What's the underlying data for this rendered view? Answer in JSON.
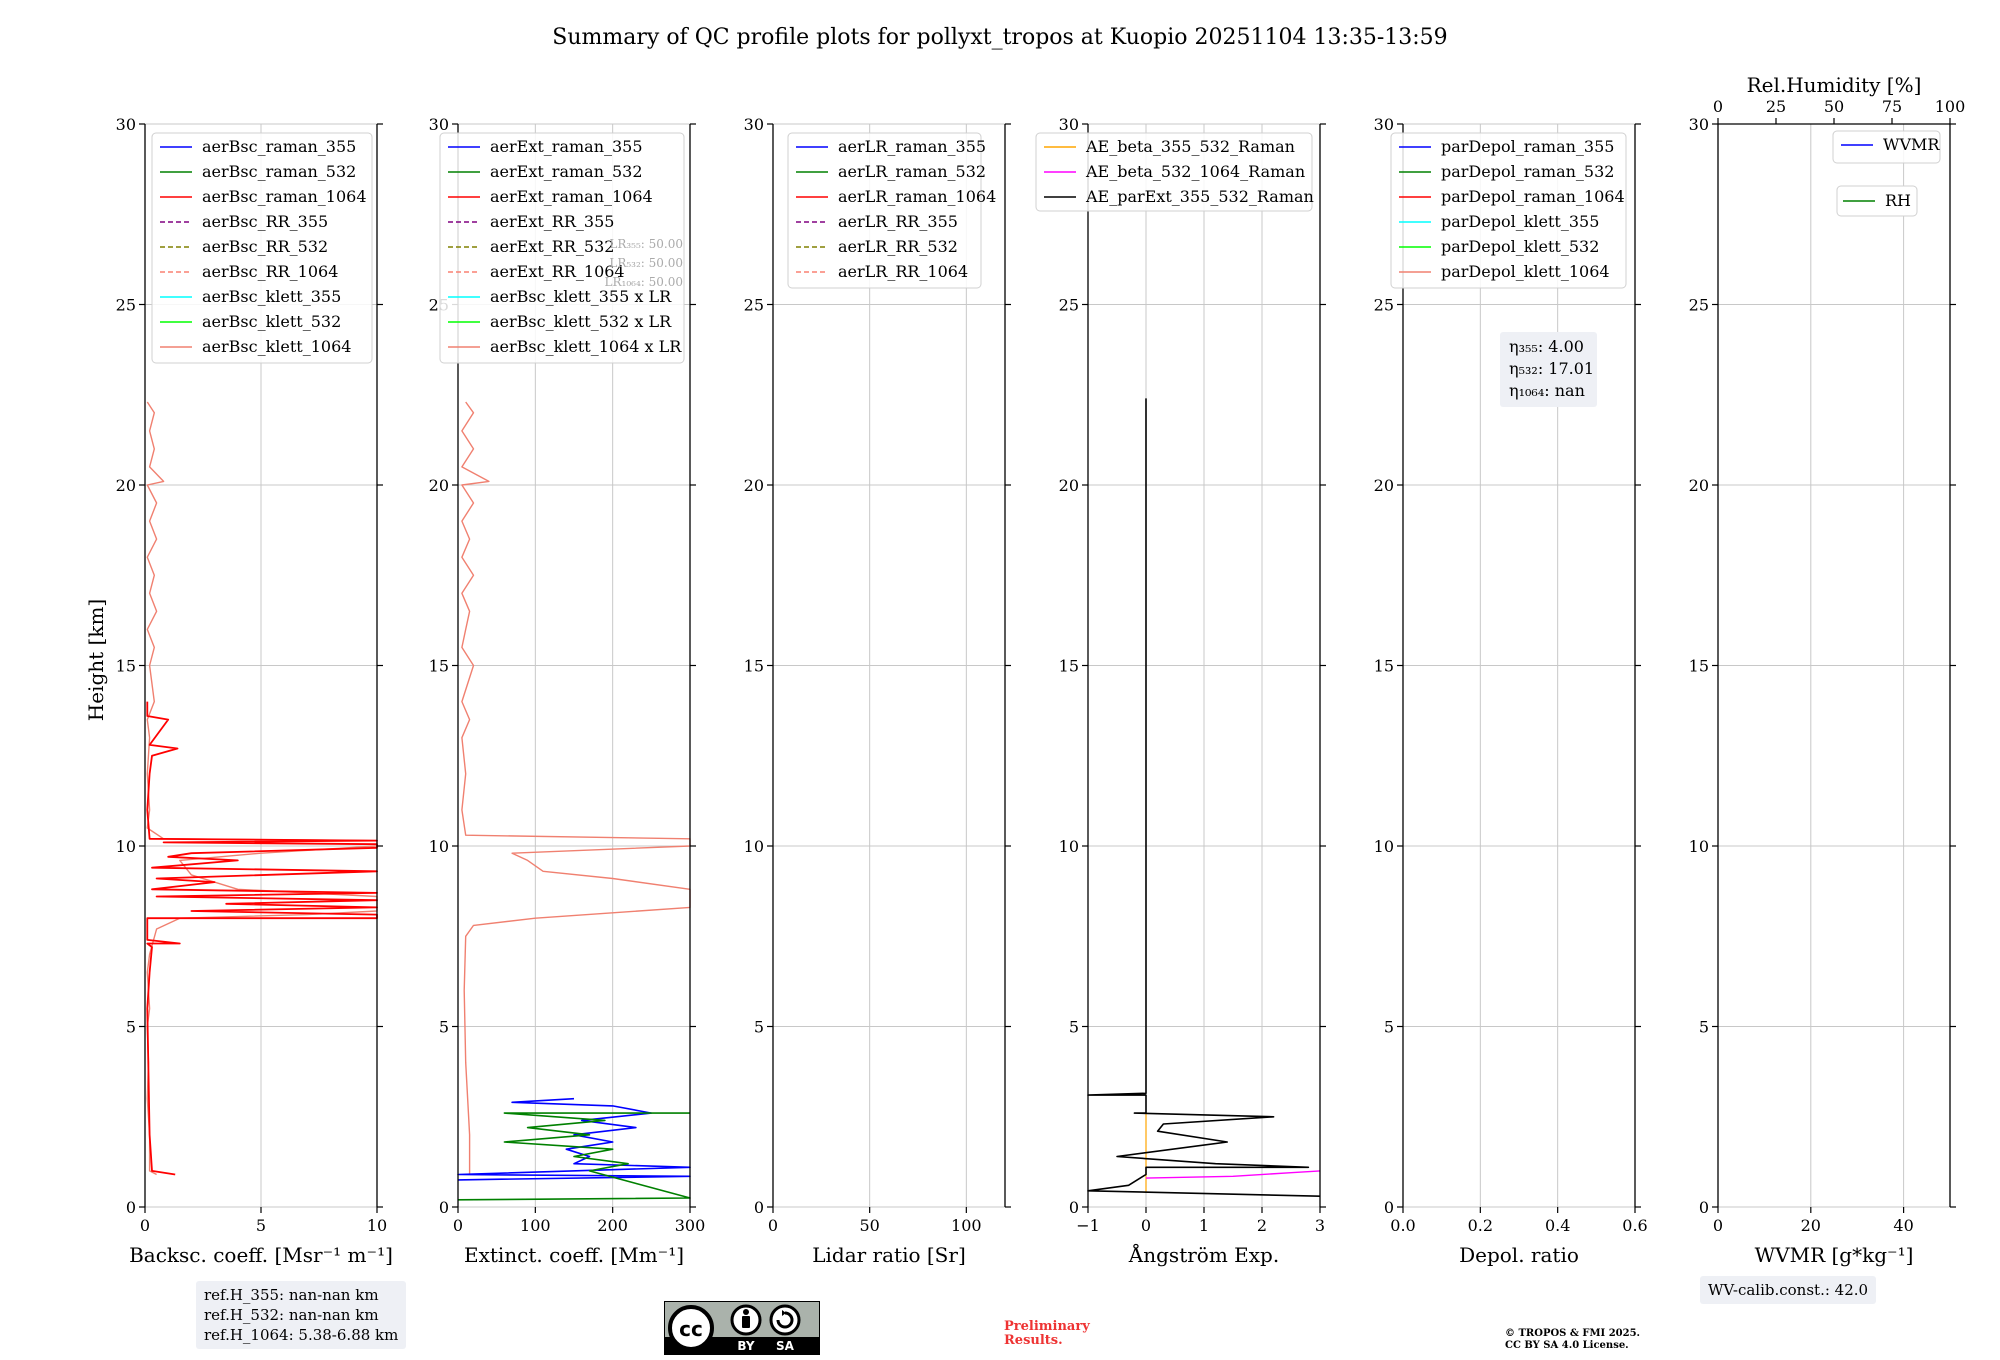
{
  "figure_title": "Summary of QC profile plots for pollyxt_tropos at Kuopio 20251104 13:35-13:59",
  "ref_heights": [
    "ref.H_355: nan-nan km",
    "ref.H_532: nan-nan km",
    "ref.H_1064: 5.38-6.88 km"
  ],
  "wv_calib": "WV-calib.const.: 42.0",
  "preliminary": [
    "Preliminary",
    "Results."
  ],
  "copyright": [
    "© TROPOS & FMI 2025.",
    "CC BY SA 4.0 License."
  ],
  "license_badge": [
    "BY",
    "SA"
  ],
  "chart_data": [
    {
      "type": "line",
      "ylabel": "Height [km]",
      "ylim": [
        0,
        30
      ],
      "yticks": [
        0,
        5,
        10,
        15,
        20,
        25,
        30
      ],
      "xlabel": "Backsc. coeff. [Msr⁻¹ m⁻¹]",
      "xlim": [
        0,
        10
      ],
      "xticks": [
        0,
        5,
        10
      ],
      "legend": [
        {
          "label": "aerBsc_raman_355",
          "color": "#0000ff",
          "dash": false
        },
        {
          "label": "aerBsc_raman_532",
          "color": "#008000",
          "dash": false
        },
        {
          "label": "aerBsc_raman_1064",
          "color": "#ff0000",
          "dash": false
        },
        {
          "label": "aerBsc_RR_355",
          "color": "#800080",
          "dash": true
        },
        {
          "label": "aerBsc_RR_532",
          "color": "#808000",
          "dash": true
        },
        {
          "label": "aerBsc_RR_1064",
          "color": "#fa8072",
          "dash": true
        },
        {
          "label": "aerBsc_klett_355",
          "color": "#00ffff",
          "dash": false
        },
        {
          "label": "aerBsc_klett_532",
          "color": "#00ff00",
          "dash": false
        },
        {
          "label": "aerBsc_klett_1064",
          "color": "#f08070",
          "dash": false
        }
      ],
      "series": [
        {
          "name": "aerBsc_klett_1064",
          "color": "#f08070",
          "width": 1.4,
          "points": [
            [
              0.5,
              0.9
            ],
            [
              0.2,
              1.0
            ],
            [
              0.2,
              2
            ],
            [
              0.1,
              3
            ],
            [
              0.15,
              4
            ],
            [
              0.1,
              5
            ],
            [
              0.2,
              5.5
            ],
            [
              0.1,
              6.5
            ],
            [
              0.2,
              7
            ],
            [
              0.5,
              7.7
            ],
            [
              1.5,
              8.0
            ],
            [
              7,
              8.1
            ],
            [
              10,
              8.2
            ],
            [
              10,
              8.6
            ],
            [
              4,
              8.8
            ],
            [
              2,
              9.2
            ],
            [
              1.5,
              9.6
            ],
            [
              5,
              9.8
            ],
            [
              10,
              10.0
            ],
            [
              10,
              10.15
            ],
            [
              0.8,
              10.2
            ],
            [
              0.1,
              10.5
            ],
            [
              0.2,
              11
            ],
            [
              0.1,
              12
            ],
            [
              0.2,
              13
            ],
            [
              0.1,
              13.5
            ],
            [
              0.4,
              14
            ],
            [
              0.2,
              15
            ],
            [
              0.4,
              15.5
            ],
            [
              0.1,
              16
            ],
            [
              0.5,
              16.5
            ],
            [
              0.2,
              17
            ],
            [
              0.4,
              17.5
            ],
            [
              0.1,
              18
            ],
            [
              0.5,
              18.5
            ],
            [
              0.2,
              19
            ],
            [
              0.5,
              19.5
            ],
            [
              0.1,
              20
            ],
            [
              0.8,
              20.1
            ],
            [
              0.2,
              20.5
            ],
            [
              0.4,
              21
            ],
            [
              0.2,
              21.5
            ],
            [
              0.4,
              22
            ],
            [
              0.1,
              22.3
            ]
          ]
        },
        {
          "name": "aerBsc_raman_1064",
          "color": "#ff0000",
          "width": 1.8,
          "points": [
            [
              1.3,
              0.9
            ],
            [
              0.3,
              1.0
            ],
            [
              0.2,
              2
            ],
            [
              0.1,
              5.5
            ],
            [
              0.2,
              6.5
            ],
            [
              0.3,
              7.2
            ],
            [
              0.1,
              7.3
            ],
            [
              1.5,
              7.3
            ],
            [
              0.1,
              7.4
            ],
            [
              0.1,
              8.0
            ],
            [
              10,
              8.0
            ],
            [
              10,
              8.1
            ],
            [
              2,
              8.2
            ],
            [
              10,
              8.3
            ],
            [
              3.5,
              8.4
            ],
            [
              10,
              8.5
            ],
            [
              0.5,
              8.6
            ],
            [
              10,
              8.7
            ],
            [
              0.3,
              8.8
            ],
            [
              3,
              9.0
            ],
            [
              0.5,
              9.1
            ],
            [
              10,
              9.3
            ],
            [
              0.3,
              9.4
            ],
            [
              4,
              9.6
            ],
            [
              1,
              9.7
            ],
            [
              2,
              9.8
            ],
            [
              10,
              9.95
            ],
            [
              10,
              10.05
            ],
            [
              0.8,
              10.1
            ],
            [
              10,
              10.15
            ],
            [
              0.2,
              10.2
            ],
            [
              0.1,
              11
            ],
            [
              0.2,
              12
            ],
            [
              0.3,
              12.5
            ],
            [
              1.4,
              12.7
            ],
            [
              0.2,
              12.8
            ],
            [
              1.0,
              13.5
            ],
            [
              0.1,
              13.6
            ],
            [
              0.1,
              14
            ]
          ]
        }
      ]
    },
    {
      "type": "line",
      "ylim": [
        0,
        30
      ],
      "yticks": [
        0,
        5,
        10,
        15,
        20,
        25,
        30
      ],
      "xlabel": "Extinct. coeff. [Mm⁻¹]",
      "xlim": [
        0,
        300
      ],
      "xticks": [
        0,
        100,
        200,
        300
      ],
      "legend": [
        {
          "label": "aerExt_raman_355",
          "color": "#0000ff",
          "dash": false
        },
        {
          "label": "aerExt_raman_532",
          "color": "#008000",
          "dash": false
        },
        {
          "label": "aerExt_raman_1064",
          "color": "#ff0000",
          "dash": false
        },
        {
          "label": "aerExt_RR_355",
          "color": "#800080",
          "dash": true
        },
        {
          "label": "aerExt_RR_532",
          "color": "#808000",
          "dash": true
        },
        {
          "label": "aerExt_RR_1064",
          "color": "#fa8072",
          "dash": true
        },
        {
          "label": "aerBsc_klett_355 x LR",
          "color": "#00ffff",
          "dash": false
        },
        {
          "label": "aerBsc_klett_532 x LR",
          "color": "#00ff00",
          "dash": false
        },
        {
          "label": "aerBsc_klett_1064 x LR",
          "color": "#f08070",
          "dash": false
        }
      ],
      "annotations": [
        "LR₃₅₅: 50.00",
        "LR₅₃₂: 50.00",
        "LR₁₀₆₄: 50.00"
      ],
      "series": [
        {
          "name": "aerBsc_klett_1064 x LR",
          "color": "#f08070",
          "width": 1.4,
          "points": [
            [
              15,
              0.9
            ],
            [
              15,
              2
            ],
            [
              10,
              4
            ],
            [
              8,
              6
            ],
            [
              10,
              7.5
            ],
            [
              20,
              7.8
            ],
            [
              100,
              8.0
            ],
            [
              300,
              8.3
            ],
            [
              300,
              8.8
            ],
            [
              200,
              9.1
            ],
            [
              110,
              9.3
            ],
            [
              90,
              9.6
            ],
            [
              70,
              9.8
            ],
            [
              300,
              10.0
            ],
            [
              300,
              10.2
            ],
            [
              10,
              10.3
            ],
            [
              5,
              11
            ],
            [
              10,
              12
            ],
            [
              5,
              13
            ],
            [
              15,
              13.5
            ],
            [
              5,
              14
            ],
            [
              20,
              15
            ],
            [
              5,
              15.5
            ],
            [
              10,
              16
            ],
            [
              15,
              16.5
            ],
            [
              5,
              17
            ],
            [
              20,
              17.5
            ],
            [
              5,
              18
            ],
            [
              15,
              18.5
            ],
            [
              5,
              19
            ],
            [
              20,
              19.5
            ],
            [
              5,
              20
            ],
            [
              40,
              20.1
            ],
            [
              5,
              20.5
            ],
            [
              20,
              21
            ],
            [
              5,
              21.5
            ],
            [
              20,
              22
            ],
            [
              10,
              22.3
            ]
          ]
        },
        {
          "name": "aerExt_raman_355",
          "color": "#0000ff",
          "width": 1.6,
          "points": [
            [
              0,
              0.75
            ],
            [
              300,
              0.85
            ],
            [
              0,
              0.9
            ],
            [
              300,
              1.1
            ],
            [
              150,
              1.2
            ],
            [
              170,
              1.4
            ],
            [
              140,
              1.6
            ],
            [
              200,
              1.8
            ],
            [
              150,
              2.0
            ],
            [
              230,
              2.2
            ],
            [
              160,
              2.4
            ],
            [
              250,
              2.6
            ],
            [
              200,
              2.8
            ],
            [
              70,
              2.9
            ],
            [
              150,
              3.0
            ]
          ]
        },
        {
          "name": "aerExt_raman_532",
          "color": "#008000",
          "width": 1.6,
          "points": [
            [
              0,
              0.2
            ],
            [
              300,
              0.25
            ],
            [
              170,
              1.0
            ],
            [
              220,
              1.2
            ],
            [
              150,
              1.4
            ],
            [
              200,
              1.6
            ],
            [
              60,
              1.8
            ],
            [
              170,
              2.0
            ],
            [
              90,
              2.2
            ],
            [
              190,
              2.4
            ],
            [
              60,
              2.6
            ],
            [
              300,
              2.6
            ]
          ]
        }
      ]
    },
    {
      "type": "line",
      "ylim": [
        0,
        30
      ],
      "yticks": [
        0,
        5,
        10,
        15,
        20,
        25,
        30
      ],
      "xlabel": "Lidar ratio [Sr]",
      "xlim": [
        0,
        120
      ],
      "xticks": [
        0,
        50,
        100
      ],
      "legend": [
        {
          "label": "aerLR_raman_355",
          "color": "#0000ff",
          "dash": false
        },
        {
          "label": "aerLR_raman_532",
          "color": "#008000",
          "dash": false
        },
        {
          "label": "aerLR_raman_1064",
          "color": "#ff0000",
          "dash": false
        },
        {
          "label": "aerLR_RR_355",
          "color": "#800080",
          "dash": true
        },
        {
          "label": "aerLR_RR_532",
          "color": "#808000",
          "dash": true
        },
        {
          "label": "aerLR_RR_1064",
          "color": "#fa8072",
          "dash": true
        }
      ],
      "series": []
    },
    {
      "type": "line",
      "ylim": [
        0,
        30
      ],
      "yticks": [
        0,
        5,
        10,
        15,
        20,
        25,
        30
      ],
      "xlabel": "Ångström Exp.",
      "xlim": [
        -1,
        3
      ],
      "xticks": [
        -1,
        0,
        1,
        2,
        3
      ],
      "legend": [
        {
          "label": "AE_beta_355_532_Raman",
          "color": "#ffa500",
          "dash": false
        },
        {
          "label": "AE_beta_532_1064_Raman",
          "color": "#ff00ff",
          "dash": false
        },
        {
          "label": "AE_parExt_355_532_Raman",
          "color": "#000000",
          "dash": false
        }
      ],
      "series": [
        {
          "name": "AE_beta_355_532_Raman",
          "color": "#ffa500",
          "width": 1.2,
          "points": [
            [
              0,
              0.4
            ],
            [
              0,
              2.6
            ]
          ]
        },
        {
          "name": "AE_beta_532_1064_Raman",
          "color": "#ff00ff",
          "width": 1.4,
          "points": [
            [
              0,
              0.8
            ],
            [
              1.5,
              0.85
            ],
            [
              2.5,
              0.95
            ],
            [
              3,
              1.0
            ]
          ]
        },
        {
          "name": "AE_parExt_355_532_Raman",
          "color": "#000000",
          "width": 1.6,
          "points": [
            [
              3,
              0.3
            ],
            [
              -1,
              0.45
            ],
            [
              -0.3,
              0.6
            ],
            [
              0,
              0.9
            ],
            [
              0,
              1.1
            ],
            [
              2.8,
              1.1
            ],
            [
              1.2,
              1.2
            ],
            [
              -0.5,
              1.4
            ],
            [
              1.4,
              1.8
            ],
            [
              0.2,
              2.1
            ],
            [
              0.3,
              2.3
            ],
            [
              2.2,
              2.5
            ],
            [
              -0.2,
              2.6
            ],
            [
              0,
              2.6
            ],
            [
              0,
              3.1
            ],
            [
              -1,
              3.1
            ],
            [
              0,
              3.15
            ],
            [
              0,
              22.4
            ]
          ]
        }
      ]
    },
    {
      "type": "line",
      "ylim": [
        0,
        30
      ],
      "yticks": [
        0,
        5,
        10,
        15,
        20,
        25,
        30
      ],
      "xlabel": "Depol. ratio",
      "xlim": [
        0,
        0.6
      ],
      "xticks": [
        0.0,
        0.2,
        0.4,
        0.6
      ],
      "xticklabels": [
        "0.0",
        "0.2",
        "0.4",
        "0.6"
      ],
      "legend": [
        {
          "label": "parDepol_raman_355",
          "color": "#0000ff",
          "dash": false
        },
        {
          "label": "parDepol_raman_532",
          "color": "#008000",
          "dash": false
        },
        {
          "label": "parDepol_raman_1064",
          "color": "#ff0000",
          "dash": false
        },
        {
          "label": "parDepol_klett_355",
          "color": "#00ffff",
          "dash": false
        },
        {
          "label": "parDepol_klett_532",
          "color": "#00ff00",
          "dash": false
        },
        {
          "label": "parDepol_klett_1064",
          "color": "#f08070",
          "dash": false
        }
      ],
      "eta_box": [
        "η₃₅₅: 4.00",
        "η₅₃₂: 17.01",
        "η₁₀₆₄: nan"
      ],
      "series": []
    },
    {
      "type": "line",
      "ylim": [
        0,
        30
      ],
      "yticks": [
        0,
        5,
        10,
        15,
        20,
        25,
        30
      ],
      "xlabel": "WVMR [g*kg⁻¹]",
      "xlim": [
        0,
        50
      ],
      "xticks": [
        0,
        20,
        40
      ],
      "top_axis_label": "Rel.Humidity [%]",
      "top_xlim": [
        0,
        100
      ],
      "top_xticks": [
        0,
        25,
        50,
        75,
        100
      ],
      "legend": [
        {
          "label": "WVMR",
          "color": "#0000ff",
          "dash": false
        }
      ],
      "legend2": [
        {
          "label": "RH",
          "color": "#008000",
          "dash": false
        }
      ],
      "series": []
    }
  ]
}
